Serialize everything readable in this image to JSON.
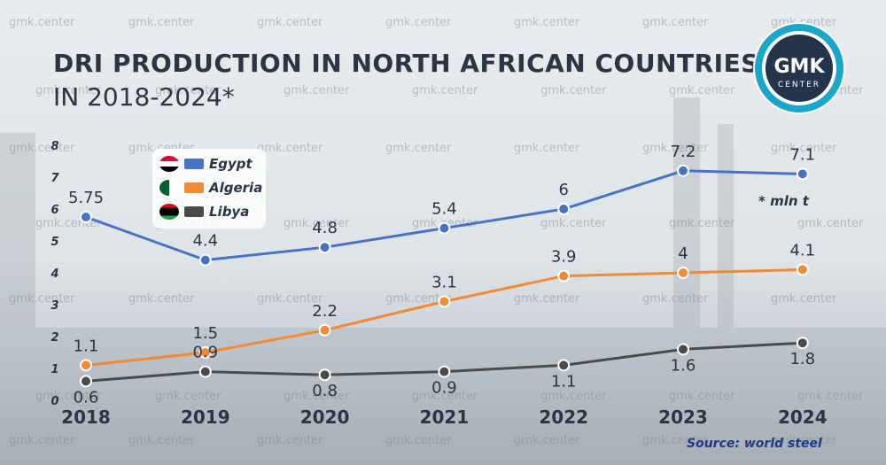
{
  "title_line1": "DRI PRODUCTION IN NORTH AFRICAN COUNTRIES",
  "title_line2": "IN 2018-2024*",
  "unit_note": "* mln t",
  "source": "Source: world steel",
  "logo": {
    "text_main": "GMK",
    "text_sub": "CENTER"
  },
  "watermark_text": "gmk.center",
  "colors": {
    "egypt": "#4a72c4",
    "algeria": "#f08a34",
    "libya": "#4b4b4b",
    "title": "#2b3544",
    "source": "#1f3a8a",
    "logo_ring": "#1aa6c8"
  },
  "chart_data": {
    "type": "line",
    "title": "DRI PRODUCTION IN NORTH AFRICAN COUNTRIES IN 2018-2024*",
    "xlabel": "",
    "ylabel": "",
    "x": [
      "2018",
      "2019",
      "2020",
      "2021",
      "2022",
      "2023",
      "2024"
    ],
    "ylim": [
      0,
      8
    ],
    "yticks": [
      "0",
      "1",
      "2",
      "3",
      "4",
      "5",
      "6",
      "7",
      "8"
    ],
    "grid": false,
    "legend_position": "top-left",
    "series": [
      {
        "name": "Egypt",
        "color": "#4a72c4",
        "values": [
          5.75,
          4.4,
          4.8,
          5.4,
          6,
          7.2,
          7.1
        ],
        "labels": [
          "5.75",
          "4.4",
          "4.8",
          "5.4",
          "6",
          "7.2",
          "7.1"
        ]
      },
      {
        "name": "Algeria",
        "color": "#f08a34",
        "values": [
          1.1,
          1.5,
          2.2,
          3.1,
          3.9,
          4,
          4.1
        ],
        "labels": [
          "1.1",
          "1.5",
          "2.2",
          "3.1",
          "3.9",
          "4",
          "4.1"
        ]
      },
      {
        "name": "Libya",
        "color": "#4b4b4b",
        "values": [
          0.6,
          0.9,
          0.8,
          0.9,
          1.1,
          1.6,
          1.8
        ],
        "labels": [
          "0.6",
          "0.9",
          "0.8",
          "0.9",
          "1.1",
          "1.6",
          "1.8"
        ]
      }
    ]
  }
}
